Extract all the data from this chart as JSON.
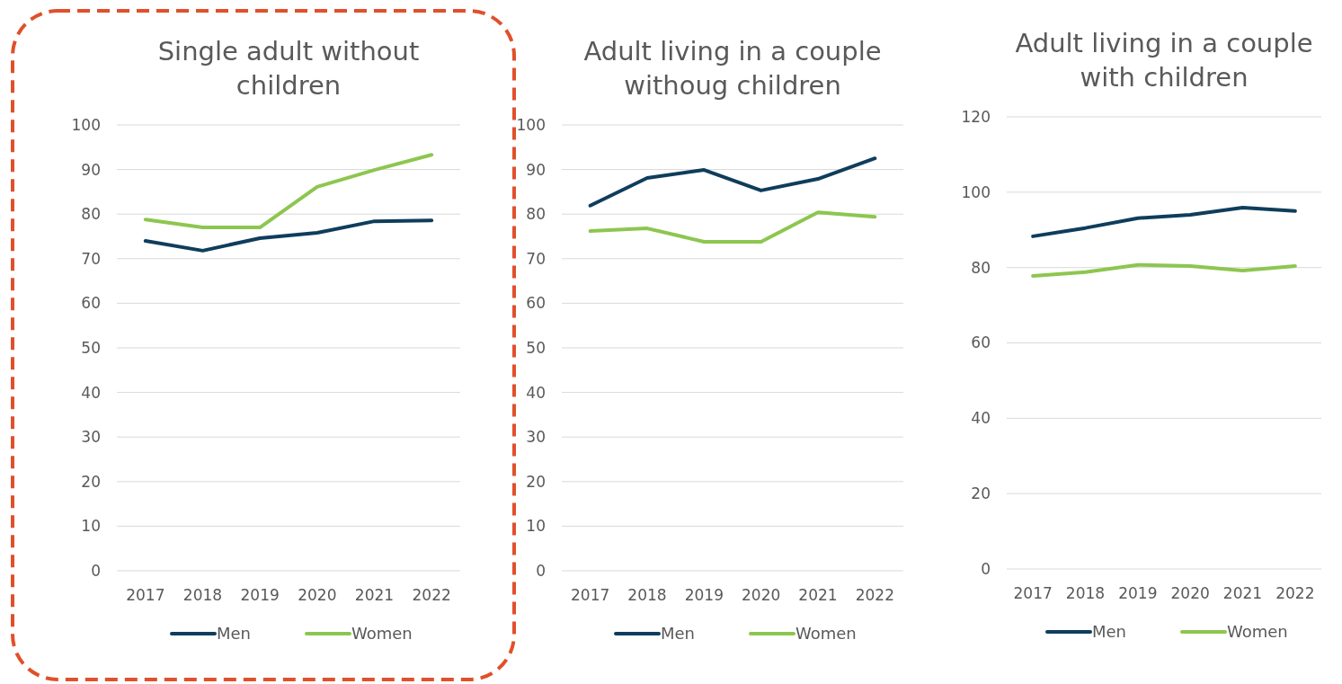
{
  "chart_data": [
    {
      "type": "line",
      "title": "Single adult without children",
      "categories": [
        "2017",
        "2018",
        "2019",
        "2020",
        "2021",
        "2022"
      ],
      "ylim": [
        0,
        100
      ],
      "yticks": [
        0,
        10,
        20,
        30,
        40,
        50,
        60,
        70,
        80,
        90,
        100
      ],
      "grid": "y",
      "legend": "bottom",
      "series": [
        {
          "name": "Men",
          "color": "#0f3d5c",
          "values": [
            74.0,
            71.8,
            74.6,
            75.8,
            78.4,
            78.6
          ]
        },
        {
          "name": "Women",
          "color": "#8dc64f",
          "values": [
            78.8,
            77.0,
            77.0,
            86.1,
            89.9,
            93.3
          ]
        }
      ]
    },
    {
      "type": "line",
      "title": "Adult living in a couple withoug children",
      "categories": [
        "2017",
        "2018",
        "2019",
        "2020",
        "2021",
        "2022"
      ],
      "ylim": [
        0,
        100
      ],
      "yticks": [
        0,
        10,
        20,
        30,
        40,
        50,
        60,
        70,
        80,
        90,
        100
      ],
      "grid": "y",
      "legend": "bottom",
      "series": [
        {
          "name": "Men",
          "color": "#0f3d5c",
          "values": [
            81.9,
            88.1,
            89.9,
            85.3,
            87.9,
            92.5
          ]
        },
        {
          "name": "Women",
          "color": "#8dc64f",
          "values": [
            76.2,
            76.8,
            73.8,
            73.8,
            80.4,
            79.4
          ]
        }
      ]
    },
    {
      "type": "line",
      "title": "Adult living in a couple with children",
      "categories": [
        "2017",
        "2018",
        "2019",
        "2020",
        "2021",
        "2022"
      ],
      "ylim": [
        0,
        120
      ],
      "yticks": [
        0,
        20,
        40,
        60,
        80,
        100,
        120
      ],
      "grid": "y",
      "legend": "bottom",
      "series": [
        {
          "name": "Men",
          "color": "#0f3d5c",
          "values": [
            88.3,
            90.5,
            93.1,
            94.0,
            95.9,
            95.0
          ]
        },
        {
          "name": "Women",
          "color": "#8dc64f",
          "values": [
            77.8,
            78.8,
            80.7,
            80.4,
            79.2,
            80.4
          ]
        }
      ]
    }
  ]
}
